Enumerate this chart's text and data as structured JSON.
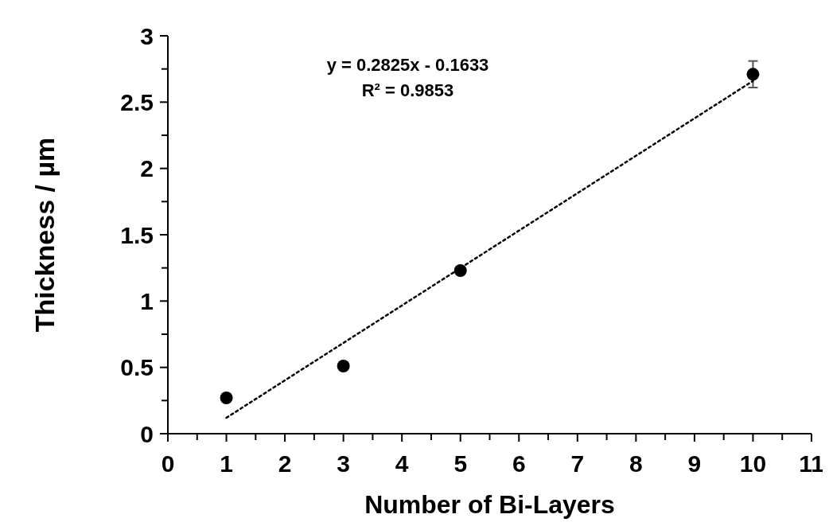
{
  "chart_data": {
    "type": "scatter",
    "xlabel": "Number of Bi-Layers",
    "ylabel": "Thickness / µm",
    "xlim": [
      0,
      11
    ],
    "xticks": [
      0,
      {
        "value": 0.5,
        "label": null
      },
      1,
      {
        "value": 1.5,
        "label": null
      },
      2,
      {
        "value": 2.5,
        "label": null
      },
      3,
      {
        "value": 3.5,
        "label": null
      },
      4,
      {
        "value": 4.5,
        "label": null
      },
      5,
      {
        "value": 5.5,
        "label": null
      },
      6,
      {
        "value": 6.5,
        "label": null
      },
      7,
      {
        "value": 7.5,
        "label": null
      },
      8,
      {
        "value": 8.5,
        "label": null
      },
      9,
      {
        "value": 9.5,
        "label": null
      },
      10,
      {
        "value": 10.5,
        "label": null
      },
      11
    ],
    "ylim": [
      0,
      3
    ],
    "yticks": [
      0,
      {
        "value": 0.25,
        "label": null
      },
      0.5,
      {
        "value": 0.75,
        "label": null
      },
      1,
      {
        "value": 1.25,
        "label": null
      },
      1.5,
      {
        "value": 1.75,
        "label": null
      },
      2,
      {
        "value": 2.25,
        "label": null
      },
      2.5,
      {
        "value": 2.75,
        "label": null
      },
      3
    ],
    "marker": "circle",
    "grid": false,
    "series": [
      {
        "color": "#000000",
        "x": [
          1,
          3,
          5,
          10
        ],
        "values": [
          0.27,
          0.51,
          1.23,
          2.71
        ],
        "errors": [
          null,
          null,
          null,
          0.1
        ]
      },
      {
        "type": "line",
        "color": "#000000",
        "x": [
          1,
          10
        ],
        "values": [
          0.12,
          2.66
        ],
        "line_style": "dotted",
        "marker": "none"
      }
    ],
    "annotations": [
      "y = 0.2825x - 0.1633",
      "R² = 0.9853"
    ]
  }
}
